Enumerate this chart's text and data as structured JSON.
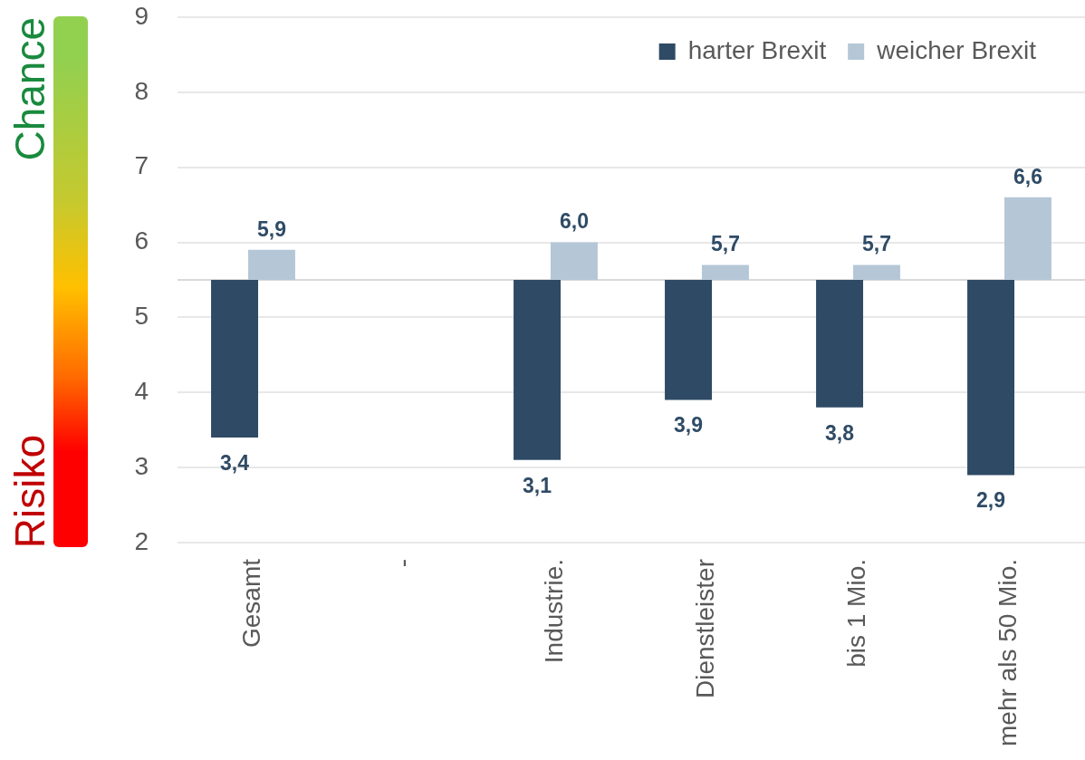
{
  "chart_data": {
    "type": "bar",
    "categories": [
      "Gesamt",
      "-",
      "Industrie.",
      "Dienstleister",
      "bis 1 Mio.",
      "mehr als 50 Mio."
    ],
    "series": [
      {
        "name": "harter Brexit",
        "color": "#2e4a65",
        "values": [
          -2.1,
          null,
          -2.4,
          -1.6,
          -1.7,
          -2.6
        ],
        "base": [
          5.5,
          null,
          5.5,
          5.5,
          5.5,
          5.5
        ],
        "value_labels": [
          "3,4",
          null,
          "3,1",
          "3,9",
          "3,8",
          "2,9"
        ]
      },
      {
        "name": "weicher Brexit",
        "color": "#b5c7d7",
        "values": [
          0.4,
          null,
          0.5,
          0.2,
          0.2,
          1.1
        ],
        "base": [
          5.5,
          null,
          5.5,
          5.5,
          5.5,
          5.5
        ],
        "value_labels": [
          "5,9",
          null,
          "6,0",
          "5,7",
          "5,7",
          "6,6"
        ]
      }
    ],
    "ylim": [
      2,
      9
    ],
    "yticks": [
      2,
      3,
      4,
      5,
      6,
      7,
      8,
      9
    ],
    "grid": "y",
    "legend": "top right",
    "ref_lines": [
      {
        "axis": "y",
        "value": 5.5,
        "color": "#d9d9d9"
      }
    ],
    "annotations": [
      "Chance",
      "Risiko"
    ]
  }
}
